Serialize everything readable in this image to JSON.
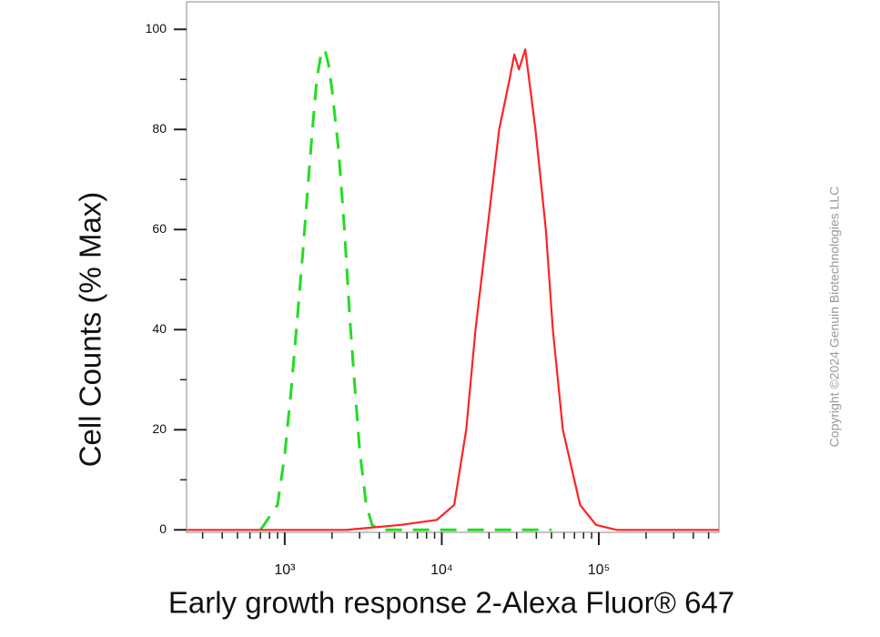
{
  "chart_data": {
    "type": "line",
    "xlabel": "Early growth response 2-Alexa Fluor® 647",
    "ylabel": "Cell Counts (% Max)",
    "annotation": "Copyright ©2024 Genuin Biotechnologies LLC",
    "xscale": "log",
    "xlim": [
      237,
      582000
    ],
    "ylim": [
      -0.5,
      105.5
    ],
    "xticks": [
      {
        "value": 1000,
        "label": "10³"
      },
      {
        "value": 10000,
        "label": "10⁴"
      },
      {
        "value": 100000,
        "label": "10⁵"
      }
    ],
    "xminor_ticks": [
      300,
      400,
      500,
      600,
      700,
      800,
      900,
      2000,
      3000,
      4000,
      5000,
      6000,
      7000,
      8000,
      9000,
      20000,
      30000,
      40000,
      50000,
      60000,
      70000,
      80000,
      90000,
      200000,
      300000,
      400000,
      500000
    ],
    "yticks": [
      0,
      20,
      40,
      60,
      80,
      100
    ],
    "yminor_ticks": [
      10,
      30,
      50,
      70,
      90
    ],
    "series": [
      {
        "color": "#22dd22",
        "dashed": true,
        "x": [
          700,
          900,
          1000,
          1100,
          1200,
          1300,
          1400,
          1500,
          1600,
          1700,
          1800,
          1900,
          2000,
          2200,
          2400,
          2600,
          2800,
          3000,
          3300,
          3600,
          4000,
          50000
        ],
        "values": [
          0,
          5,
          15,
          28,
          42,
          55,
          68,
          80,
          90,
          95,
          96,
          93,
          88,
          76,
          60,
          42,
          28,
          16,
          5,
          1,
          0,
          0
        ]
      },
      {
        "color": "#ff2222",
        "dashed": false,
        "x": [
          240,
          2450,
          5500,
          9300,
          12000,
          14300,
          16400,
          19500,
          23200,
          27000,
          29000,
          31000,
          34000,
          39500,
          46000,
          51000,
          59000,
          76000,
          96000,
          130000,
          580000
        ],
        "values": [
          0,
          0,
          1,
          2,
          5,
          20,
          40,
          60,
          80,
          90,
          95,
          92,
          96,
          80,
          60,
          40,
          20,
          5,
          1,
          0,
          0
        ]
      }
    ]
  }
}
